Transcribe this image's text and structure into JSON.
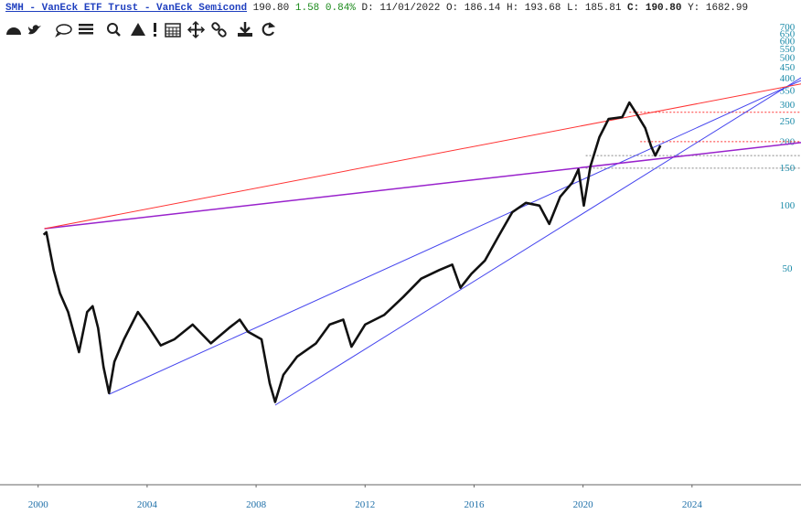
{
  "header": {
    "title": "SMH - VanEck ETF Trust - VanEck Semicond",
    "price": "190.80",
    "change": "1.58",
    "change_pct": "0.84%",
    "date": "D: 11/01/2022",
    "open": "O: 186.14",
    "high": "H: 193.68",
    "low": "L: 185.81",
    "close": "C: 190.80",
    "y": "Y: 1682.99"
  },
  "chart_data": {
    "type": "line",
    "log_scale": true,
    "grid": false,
    "xlim": [
      1998.6,
      2028
    ],
    "xticks": [
      2000,
      2004,
      2008,
      2012,
      2016,
      2020,
      2024
    ],
    "ylim": [
      4.7,
      750
    ],
    "yticks": [
      50,
      100,
      150,
      200,
      250,
      300,
      350,
      400,
      450,
      500,
      550,
      600,
      650,
      700
    ],
    "series": [
      {
        "color": "#111111",
        "width": 2.6,
        "x": [
          2000.2,
          2000.3,
          2000.57,
          2000.8,
          2001.1,
          2001.5,
          2001.8,
          2002,
          2002.2,
          2002.4,
          2002.6,
          2002.8,
          2003.15,
          2003.66,
          2004,
          2004.5,
          2005,
          2005.67,
          2006.34,
          2007,
          2007.4,
          2007.7,
          2008.2,
          2008.5,
          2008.7,
          2009,
          2009.5,
          2010.2,
          2010.7,
          2011.2,
          2011.5,
          2012,
          2012.7,
          2013.4,
          2014.06,
          2014.73,
          2015.2,
          2015.5,
          2015.9,
          2016.4,
          2016.9,
          2017.4,
          2017.9,
          2018.4,
          2018.76,
          2019.16,
          2019.6,
          2019.83,
          2020.03,
          2020.27,
          2020.6,
          2020.94,
          2021.44,
          2021.7,
          2021.98,
          2022.28,
          2022.5,
          2022.65,
          2022.84
        ],
        "values": [
          72,
          74,
          49,
          38,
          31,
          20,
          31,
          33,
          26,
          17,
          12.8,
          18,
          23,
          31,
          27,
          21.5,
          23,
          27,
          22,
          26,
          28.5,
          25,
          23,
          14.2,
          11.6,
          15.6,
          19,
          22,
          27,
          28.5,
          21.2,
          27,
          30,
          36.5,
          44.6,
          49,
          52,
          40.4,
          47,
          54.4,
          71,
          92,
          102,
          99,
          81,
          109,
          127,
          147,
          99,
          152,
          209,
          255,
          260,
          305,
          268,
          231,
          189,
          171,
          190.8
        ]
      },
      {
        "color": "#ff3333",
        "width": 1,
        "x": [
          2000.23,
          2028
        ],
        "values": [
          77,
          374
        ]
      },
      {
        "color": "#9922cc",
        "width": 1.5,
        "x": [
          2000.23,
          2028
        ],
        "values": [
          77,
          197
        ]
      },
      {
        "color": "#4444ee",
        "width": 1,
        "x": [
          2002.6,
          2028
        ],
        "values": [
          12.6,
          388
        ]
      },
      {
        "color": "#4444ee",
        "width": 1,
        "x": [
          2008.7,
          2028
        ],
        "values": [
          11.2,
          400
        ]
      },
      {
        "color": "#ff3333",
        "width": 1,
        "dotted": true,
        "x": [
          2021.7,
          2028
        ],
        "values": [
          274,
          274
        ]
      },
      {
        "color": "#ff3333",
        "width": 1,
        "dotted": true,
        "x": [
          2022.1,
          2028
        ],
        "values": [
          199,
          199
        ]
      },
      {
        "color": "#888888",
        "width": 1,
        "dotted": true,
        "x": [
          2020.1,
          2028
        ],
        "values": [
          171,
          171
        ]
      },
      {
        "color": "#888888",
        "width": 1,
        "dotted": true,
        "x": [
          2020.1,
          2028
        ],
        "values": [
          149,
          149
        ]
      }
    ]
  }
}
